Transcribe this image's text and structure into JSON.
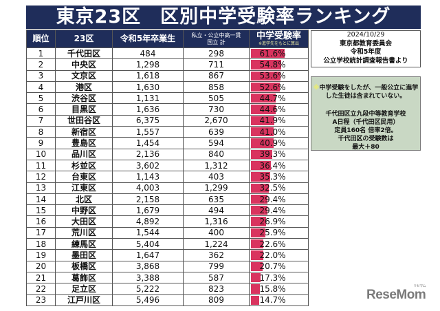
{
  "title": "東京23区　区別中学受験率ランキング",
  "table": {
    "headers": {
      "rank": "順位",
      "ward": "23区",
      "graduates": "令和5年卒業生",
      "private_line1": "私立・公立中高一貫",
      "private_line2": "国立 計",
      "rate": "中学受験率",
      "rate_note": "※進学先をもとに算出"
    },
    "rows": [
      {
        "rank": "1",
        "ward": "千代田区",
        "graduates": "484",
        "private": "298",
        "rate": "61.6%",
        "pct": 61.6
      },
      {
        "rank": "2",
        "ward": "中央区",
        "graduates": "1,298",
        "private": "711",
        "rate": "54.8%",
        "pct": 54.8
      },
      {
        "rank": "3",
        "ward": "文京区",
        "graduates": "1,618",
        "private": "867",
        "rate": "53.6%",
        "pct": 53.6
      },
      {
        "rank": "4",
        "ward": "港区",
        "graduates": "1,630",
        "private": "858",
        "rate": "52.6%",
        "pct": 52.6
      },
      {
        "rank": "5",
        "ward": "渋谷区",
        "graduates": "1,131",
        "private": "505",
        "rate": "44.7%",
        "pct": 44.7
      },
      {
        "rank": "6",
        "ward": "目黒区",
        "graduates": "1,636",
        "private": "730",
        "rate": "44.6%",
        "pct": 44.6
      },
      {
        "rank": "7",
        "ward": "世田谷区",
        "graduates": "6,375",
        "private": "2,670",
        "rate": "41.9%",
        "pct": 41.9
      },
      {
        "rank": "8",
        "ward": "新宿区",
        "graduates": "1,557",
        "private": "639",
        "rate": "41.0%",
        "pct": 41.0
      },
      {
        "rank": "9",
        "ward": "豊島区",
        "graduates": "1,454",
        "private": "594",
        "rate": "40.9%",
        "pct": 40.9
      },
      {
        "rank": "10",
        "ward": "品川区",
        "graduates": "2,136",
        "private": "840",
        "rate": "39.3%",
        "pct": 39.3
      },
      {
        "rank": "11",
        "ward": "杉並区",
        "graduates": "3,602",
        "private": "1,312",
        "rate": "36.4%",
        "pct": 36.4
      },
      {
        "rank": "12",
        "ward": "台東区",
        "graduates": "1,143",
        "private": "403",
        "rate": "35.3%",
        "pct": 35.3
      },
      {
        "rank": "13",
        "ward": "江東区",
        "graduates": "4,003",
        "private": "1,299",
        "rate": "32.5%",
        "pct": 32.5
      },
      {
        "rank": "14",
        "ward": "北区",
        "graduates": "2,158",
        "private": "635",
        "rate": "29.4%",
        "pct": 29.4
      },
      {
        "rank": "15",
        "ward": "中野区",
        "graduates": "1,679",
        "private": "494",
        "rate": "29.4%",
        "pct": 29.4
      },
      {
        "rank": "16",
        "ward": "大田区",
        "graduates": "4,892",
        "private": "1,316",
        "rate": "26.9%",
        "pct": 26.9
      },
      {
        "rank": "17",
        "ward": "荒川区",
        "graduates": "1,544",
        "private": "400",
        "rate": "25.9%",
        "pct": 25.9
      },
      {
        "rank": "18",
        "ward": "練馬区",
        "graduates": "5,404",
        "private": "1,224",
        "rate": "22.6%",
        "pct": 22.6
      },
      {
        "rank": "19",
        "ward": "墨田区",
        "graduates": "1,647",
        "private": "362",
        "rate": "22.0%",
        "pct": 22.0
      },
      {
        "rank": "20",
        "ward": "板橋区",
        "graduates": "3,868",
        "private": "799",
        "rate": "20.7%",
        "pct": 20.7
      },
      {
        "rank": "21",
        "ward": "葛飾区",
        "graduates": "3,388",
        "private": "587",
        "rate": "17.3%",
        "pct": 17.3
      },
      {
        "rank": "22",
        "ward": "足立区",
        "graduates": "5,222",
        "private": "823",
        "rate": "15.8%",
        "pct": 15.8
      },
      {
        "rank": "23",
        "ward": "江戸川区",
        "graduates": "5,496",
        "private": "809",
        "rate": "14.7%",
        "pct": 14.7
      }
    ]
  },
  "source": {
    "date": "2024/10/29",
    "org": "東京都教育委員会",
    "year": "令和5年度",
    "report": "公立学校統計調査報告書より"
  },
  "note": {
    "mark": "※",
    "line1": "中学受験をしたが、一般公立に進学",
    "line2": "した生徒は含まれていない。",
    "line3": "千代田区立九段中等教育学校",
    "line4": "A日程（千代田区民用）",
    "line5": "定員160名 倍率2倍。",
    "line6": "千代田区の受験数は",
    "line7": "最大＋80"
  },
  "logo": {
    "text": "ReseMom",
    "kana": "リセマム"
  },
  "colors": {
    "header_bg": "#1f2d5a",
    "bar": "#d9345f",
    "note_bg": "#c9d8c4"
  }
}
